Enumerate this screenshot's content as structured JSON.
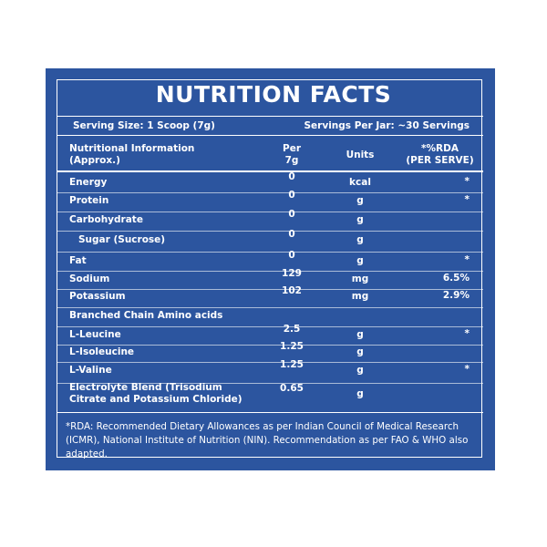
{
  "title": "NUTRITION FACTS",
  "serving": {
    "size": "Serving Size: 1 Scoop (7g)",
    "per_jar": "Servings Per Jar: ~30 Servings"
  },
  "header": {
    "info": "Nutritional Information\n(Approx.)",
    "per": "Per\n7g",
    "units": "Units",
    "rda": "*%RDA\n(PER SERVE)"
  },
  "rows": [
    {
      "name": "Energy",
      "per": 0,
      "units": "kcal",
      "rda": "*"
    },
    {
      "name": "Protein",
      "per": 0,
      "units": "g",
      "rda": "*"
    },
    {
      "name": "Carbohydrate",
      "per": 0,
      "units": "g"
    },
    {
      "name": "Sugar (Sucrose)",
      "per": 0,
      "units": "g"
    },
    {
      "name": "Fat",
      "per": 0,
      "units": "g",
      "rda": "*"
    },
    {
      "name": "Sodium",
      "per": 129,
      "units": "mg",
      "rda": "6.5%"
    },
    {
      "name": "Potassium",
      "per": 102,
      "units": "mg",
      "rda": "2.9%"
    },
    {
      "name": "Branched Chain Amino acids"
    },
    {
      "name": "L-Leucine",
      "per": 2.5,
      "units": "g",
      "rda": "*"
    },
    {
      "name": "L-Isoleucine",
      "per": 1.25,
      "units": "g"
    },
    {
      "name": "L-Valine",
      "per": 1.25,
      "units": "g",
      "rda": "*"
    },
    {
      "name": "Electrolyte Blend (Trisodium\nCitrate and Potassium Chloride)",
      "per": 0.65,
      "units": "g"
    }
  ],
  "footnote": "*RDA: Recommended Dietary Allowances as per Indian Council of Medical Research (ICMR), National Institute of Nutrition (NIN). Recommendation as per FAO & WHO also adapted."
}
